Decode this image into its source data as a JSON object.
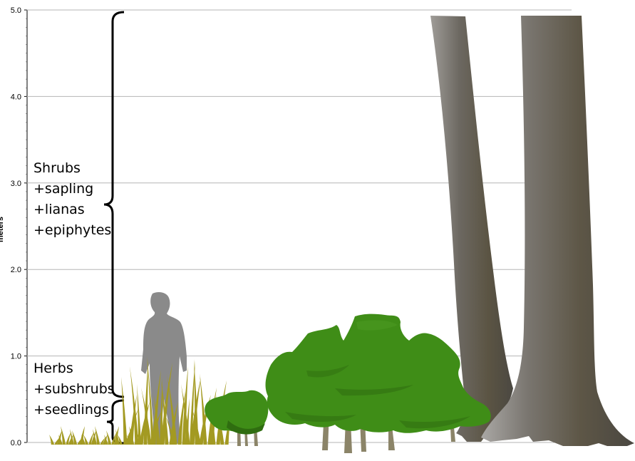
{
  "chart_data": {
    "type": "diagram",
    "ylabel": "meters",
    "ylim": [
      0,
      5
    ],
    "y_ticks": [
      "0.0",
      "1.0",
      "2.0",
      "3.0",
      "4.0",
      "5.0"
    ],
    "grid": true
  },
  "layers": {
    "shrub_layer": {
      "lines": [
        "Shrubs",
        "+sapling",
        "+lianas",
        "+epiphytes"
      ],
      "range_m": [
        0.5,
        5.0
      ]
    },
    "herb_layer": {
      "lines": [
        "Herbs",
        "+subshrubs",
        "+seedlings"
      ],
      "range_m": [
        0.0,
        0.5
      ]
    }
  },
  "figures": {
    "person_icon": "person-silhouette-icon",
    "grass_icon": "grass-icon",
    "shrub_icon": "shrub-icon",
    "tree_icon": "tree-trunk-icon"
  },
  "colors": {
    "grass": "#a39a22",
    "shrub": "#3f8d17",
    "shrub_shadow": "#2f6d10",
    "person": "#8a8a8a",
    "trunk_dark": "#4e4b45",
    "trunk_light": "#a8a6a2",
    "stem": "#8b8468",
    "grid": "#b5b5b5"
  }
}
